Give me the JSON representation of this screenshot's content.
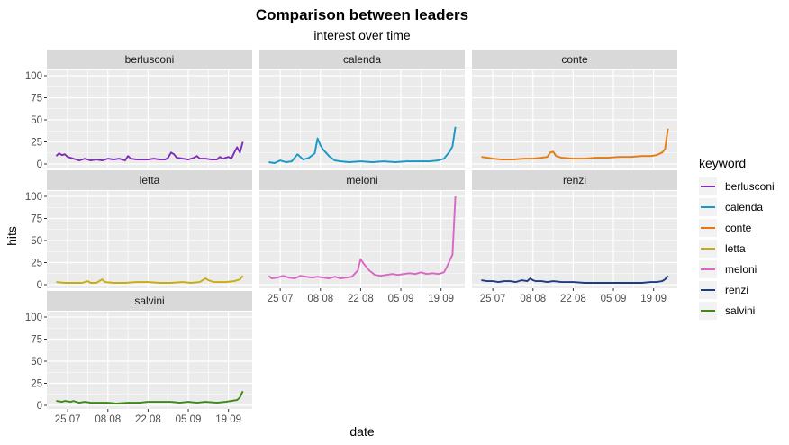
{
  "chart_data": {
    "type": "line",
    "title": "Comparison between leaders",
    "subtitle": "interest over time",
    "xlabel": "date",
    "ylabel": "hits",
    "ylim": [
      0,
      100
    ],
    "yticks": [
      0,
      25,
      50,
      75,
      100
    ],
    "xlim": [
      "2022-07-19",
      "2022-09-26"
    ],
    "xticks": [
      {
        "date": "2022-07-25",
        "label": "25 07"
      },
      {
        "date": "2022-08-08",
        "label": "08 08"
      },
      {
        "date": "2022-08-22",
        "label": "22 08"
      },
      {
        "date": "2022-09-05",
        "label": "05 09"
      },
      {
        "date": "2022-09-19",
        "label": "19 09"
      }
    ],
    "legend": {
      "title": "keyword",
      "position": "right"
    },
    "grid": true,
    "facet_order": [
      "berlusconi",
      "calenda",
      "conte",
      "letta",
      "meloni",
      "renzi",
      "salvini"
    ],
    "series": [
      {
        "name": "berlusconi",
        "color": "#7e2fb4",
        "points": [
          [
            "2022-07-21",
            9
          ],
          [
            "2022-07-22",
            12
          ],
          [
            "2022-07-23",
            10
          ],
          [
            "2022-07-24",
            11
          ],
          [
            "2022-07-25",
            8
          ],
          [
            "2022-07-27",
            6
          ],
          [
            "2022-07-29",
            4
          ],
          [
            "2022-07-31",
            6
          ],
          [
            "2022-08-02",
            4
          ],
          [
            "2022-08-04",
            5
          ],
          [
            "2022-08-06",
            4
          ],
          [
            "2022-08-08",
            6
          ],
          [
            "2022-08-10",
            5
          ],
          [
            "2022-08-12",
            6
          ],
          [
            "2022-08-14",
            4
          ],
          [
            "2022-08-15",
            9
          ],
          [
            "2022-08-16",
            6
          ],
          [
            "2022-08-18",
            5
          ],
          [
            "2022-08-20",
            5
          ],
          [
            "2022-08-22",
            5
          ],
          [
            "2022-08-24",
            6
          ],
          [
            "2022-08-26",
            5
          ],
          [
            "2022-08-28",
            5
          ],
          [
            "2022-08-29",
            7
          ],
          [
            "2022-08-30",
            13
          ],
          [
            "2022-08-31",
            11
          ],
          [
            "2022-09-01",
            7
          ],
          [
            "2022-09-03",
            6
          ],
          [
            "2022-09-05",
            5
          ],
          [
            "2022-09-07",
            7
          ],
          [
            "2022-09-08",
            9
          ],
          [
            "2022-09-09",
            6
          ],
          [
            "2022-09-11",
            6
          ],
          [
            "2022-09-13",
            5
          ],
          [
            "2022-09-15",
            5
          ],
          [
            "2022-09-16",
            8
          ],
          [
            "2022-09-17",
            6
          ],
          [
            "2022-09-19",
            8
          ],
          [
            "2022-09-20",
            6
          ],
          [
            "2022-09-21",
            13
          ],
          [
            "2022-09-22",
            19
          ],
          [
            "2022-09-23",
            13
          ],
          [
            "2022-09-24",
            25
          ]
        ]
      },
      {
        "name": "calenda",
        "color": "#1798c7",
        "points": [
          [
            "2022-07-21",
            2
          ],
          [
            "2022-07-23",
            1
          ],
          [
            "2022-07-25",
            4
          ],
          [
            "2022-07-27",
            2
          ],
          [
            "2022-07-29",
            3
          ],
          [
            "2022-07-31",
            11
          ],
          [
            "2022-08-01",
            8
          ],
          [
            "2022-08-02",
            5
          ],
          [
            "2022-08-04",
            7
          ],
          [
            "2022-08-06",
            12
          ],
          [
            "2022-08-07",
            29
          ],
          [
            "2022-08-08",
            21
          ],
          [
            "2022-08-09",
            16
          ],
          [
            "2022-08-11",
            9
          ],
          [
            "2022-08-13",
            4
          ],
          [
            "2022-08-15",
            3
          ],
          [
            "2022-08-18",
            2
          ],
          [
            "2022-08-22",
            3
          ],
          [
            "2022-08-26",
            2
          ],
          [
            "2022-08-30",
            3
          ],
          [
            "2022-09-03",
            2
          ],
          [
            "2022-09-07",
            3
          ],
          [
            "2022-09-11",
            3
          ],
          [
            "2022-09-15",
            3
          ],
          [
            "2022-09-18",
            4
          ],
          [
            "2022-09-20",
            6
          ],
          [
            "2022-09-22",
            14
          ],
          [
            "2022-09-23",
            20
          ],
          [
            "2022-09-24",
            42
          ]
        ]
      },
      {
        "name": "conte",
        "color": "#e47a14",
        "points": [
          [
            "2022-07-21",
            8
          ],
          [
            "2022-07-23",
            7
          ],
          [
            "2022-07-25",
            6
          ],
          [
            "2022-07-28",
            5
          ],
          [
            "2022-08-01",
            5
          ],
          [
            "2022-08-05",
            6
          ],
          [
            "2022-08-08",
            6
          ],
          [
            "2022-08-11",
            7
          ],
          [
            "2022-08-13",
            8
          ],
          [
            "2022-08-14",
            13
          ],
          [
            "2022-08-15",
            14
          ],
          [
            "2022-08-16",
            9
          ],
          [
            "2022-08-18",
            7
          ],
          [
            "2022-08-22",
            6
          ],
          [
            "2022-08-26",
            6
          ],
          [
            "2022-08-30",
            7
          ],
          [
            "2022-09-03",
            7
          ],
          [
            "2022-09-07",
            8
          ],
          [
            "2022-09-11",
            8
          ],
          [
            "2022-09-15",
            9
          ],
          [
            "2022-09-18",
            9
          ],
          [
            "2022-09-20",
            10
          ],
          [
            "2022-09-22",
            13
          ],
          [
            "2022-09-23",
            17
          ],
          [
            "2022-09-24",
            40
          ]
        ]
      },
      {
        "name": "letta",
        "color": "#c9ac12",
        "points": [
          [
            "2022-07-21",
            3
          ],
          [
            "2022-07-24",
            2
          ],
          [
            "2022-07-27",
            2
          ],
          [
            "2022-07-30",
            2
          ],
          [
            "2022-08-01",
            4
          ],
          [
            "2022-08-02",
            2
          ],
          [
            "2022-08-04",
            2
          ],
          [
            "2022-08-06",
            6
          ],
          [
            "2022-08-07",
            3
          ],
          [
            "2022-08-10",
            2
          ],
          [
            "2022-08-14",
            2
          ],
          [
            "2022-08-18",
            3
          ],
          [
            "2022-08-22",
            3
          ],
          [
            "2022-08-26",
            2
          ],
          [
            "2022-08-30",
            2
          ],
          [
            "2022-09-03",
            3
          ],
          [
            "2022-09-06",
            2
          ],
          [
            "2022-09-09",
            3
          ],
          [
            "2022-09-11",
            7
          ],
          [
            "2022-09-12",
            5
          ],
          [
            "2022-09-14",
            3
          ],
          [
            "2022-09-18",
            3
          ],
          [
            "2022-09-21",
            4
          ],
          [
            "2022-09-23",
            6
          ],
          [
            "2022-09-24",
            10
          ]
        ]
      },
      {
        "name": "meloni",
        "color": "#d867c6",
        "points": [
          [
            "2022-07-21",
            10
          ],
          [
            "2022-07-22",
            7
          ],
          [
            "2022-07-24",
            8
          ],
          [
            "2022-07-26",
            10
          ],
          [
            "2022-07-28",
            8
          ],
          [
            "2022-07-30",
            7
          ],
          [
            "2022-08-01",
            10
          ],
          [
            "2022-08-03",
            9
          ],
          [
            "2022-08-05",
            8
          ],
          [
            "2022-08-07",
            9
          ],
          [
            "2022-08-09",
            8
          ],
          [
            "2022-08-11",
            7
          ],
          [
            "2022-08-13",
            9
          ],
          [
            "2022-08-15",
            7
          ],
          [
            "2022-08-17",
            8
          ],
          [
            "2022-08-19",
            9
          ],
          [
            "2022-08-21",
            16
          ],
          [
            "2022-08-22",
            29
          ],
          [
            "2022-08-23",
            24
          ],
          [
            "2022-08-25",
            16
          ],
          [
            "2022-08-27",
            11
          ],
          [
            "2022-08-29",
            10
          ],
          [
            "2022-08-31",
            11
          ],
          [
            "2022-09-02",
            12
          ],
          [
            "2022-09-04",
            11
          ],
          [
            "2022-09-06",
            12
          ],
          [
            "2022-09-08",
            13
          ],
          [
            "2022-09-10",
            12
          ],
          [
            "2022-09-12",
            14
          ],
          [
            "2022-09-14",
            12
          ],
          [
            "2022-09-16",
            13
          ],
          [
            "2022-09-18",
            12
          ],
          [
            "2022-09-20",
            14
          ],
          [
            "2022-09-21",
            20
          ],
          [
            "2022-09-22",
            27
          ],
          [
            "2022-09-23",
            34
          ],
          [
            "2022-09-24",
            100
          ]
        ]
      },
      {
        "name": "renzi",
        "color": "#1d3b86",
        "points": [
          [
            "2022-07-21",
            5
          ],
          [
            "2022-07-23",
            4
          ],
          [
            "2022-07-25",
            4
          ],
          [
            "2022-07-27",
            3
          ],
          [
            "2022-07-29",
            4
          ],
          [
            "2022-07-31",
            4
          ],
          [
            "2022-08-02",
            3
          ],
          [
            "2022-08-04",
            5
          ],
          [
            "2022-08-06",
            4
          ],
          [
            "2022-08-07",
            7
          ],
          [
            "2022-08-08",
            5
          ],
          [
            "2022-08-09",
            4
          ],
          [
            "2022-08-11",
            4
          ],
          [
            "2022-08-13",
            3
          ],
          [
            "2022-08-15",
            4
          ],
          [
            "2022-08-18",
            3
          ],
          [
            "2022-08-22",
            3
          ],
          [
            "2022-08-26",
            2
          ],
          [
            "2022-08-30",
            2
          ],
          [
            "2022-09-03",
            2
          ],
          [
            "2022-09-07",
            2
          ],
          [
            "2022-09-11",
            2
          ],
          [
            "2022-09-15",
            2
          ],
          [
            "2022-09-18",
            3
          ],
          [
            "2022-09-20",
            3
          ],
          [
            "2022-09-22",
            4
          ],
          [
            "2022-09-23",
            6
          ],
          [
            "2022-09-24",
            10
          ]
        ]
      },
      {
        "name": "salvini",
        "color": "#3a8a17",
        "points": [
          [
            "2022-07-21",
            5
          ],
          [
            "2022-07-23",
            4
          ],
          [
            "2022-07-24",
            5
          ],
          [
            "2022-07-26",
            4
          ],
          [
            "2022-07-27",
            5
          ],
          [
            "2022-07-29",
            3
          ],
          [
            "2022-07-31",
            4
          ],
          [
            "2022-08-02",
            3
          ],
          [
            "2022-08-05",
            3
          ],
          [
            "2022-08-08",
            3
          ],
          [
            "2022-08-11",
            2
          ],
          [
            "2022-08-15",
            3
          ],
          [
            "2022-08-19",
            3
          ],
          [
            "2022-08-22",
            4
          ],
          [
            "2022-08-26",
            4
          ],
          [
            "2022-08-30",
            4
          ],
          [
            "2022-09-02",
            3
          ],
          [
            "2022-09-05",
            4
          ],
          [
            "2022-09-08",
            3
          ],
          [
            "2022-09-11",
            4
          ],
          [
            "2022-09-15",
            3
          ],
          [
            "2022-09-18",
            4
          ],
          [
            "2022-09-20",
            5
          ],
          [
            "2022-09-22",
            6
          ],
          [
            "2022-09-23",
            9
          ],
          [
            "2022-09-24",
            16
          ]
        ]
      }
    ]
  }
}
